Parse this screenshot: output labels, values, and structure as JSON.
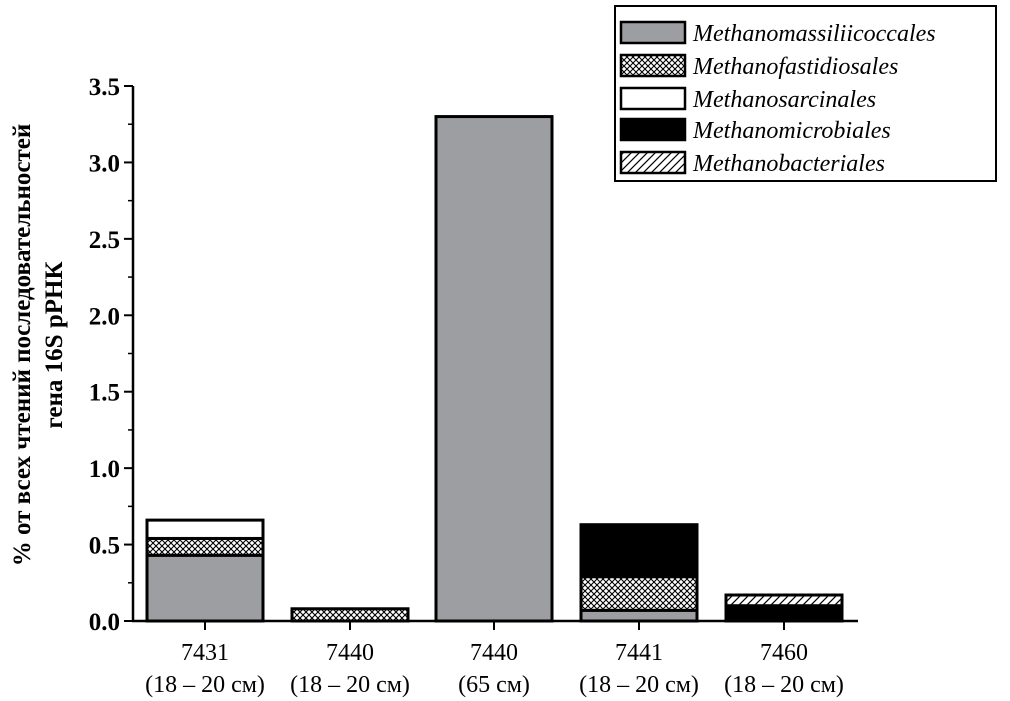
{
  "chart_data": {
    "type": "bar",
    "stacked": true,
    "categories": [
      [
        "7431",
        "(18 – 20 см)"
      ],
      [
        "7440",
        "(18 – 20 см)"
      ],
      [
        "7440",
        "(65 см)"
      ],
      [
        "7441",
        "(18 – 20 см)"
      ],
      [
        "7460",
        "(18 – 20 см)"
      ]
    ],
    "series": [
      {
        "name": "Methanomassiliicoccales",
        "fill": "gray",
        "values": [
          0.43,
          0.0,
          3.3,
          0.07,
          0.0
        ]
      },
      {
        "name": "Methanofastidiosales",
        "fill": "crosshatch",
        "values": [
          0.11,
          0.08,
          0.0,
          0.22,
          0.0
        ]
      },
      {
        "name": "Methanosarcinales",
        "fill": "white",
        "values": [
          0.12,
          0.0,
          0.0,
          0.0,
          0.02
        ]
      },
      {
        "name": "Methanomicrobiales",
        "fill": "black",
        "values": [
          0.0,
          0.0,
          0.0,
          0.34,
          0.08
        ]
      },
      {
        "name": "Methanobacteriales",
        "fill": "diagonal",
        "values": [
          0.0,
          0.0,
          0.0,
          0.0,
          0.07
        ]
      }
    ],
    "ylabel": [
      "% от всех чтений последовательностей",
      "гена 16S рРНК"
    ],
    "xlabel": "",
    "title": "",
    "ylim": [
      0,
      3.5
    ],
    "yticks": [
      "0.0",
      "0.5",
      "1.0",
      "1.5",
      "2.0",
      "2.5",
      "3.0",
      "3.5"
    ],
    "grid": false,
    "legend_position": "top-right"
  },
  "colors": {
    "gray": "#9d9ea2",
    "black": "#000000",
    "white": "#ffffff"
  }
}
